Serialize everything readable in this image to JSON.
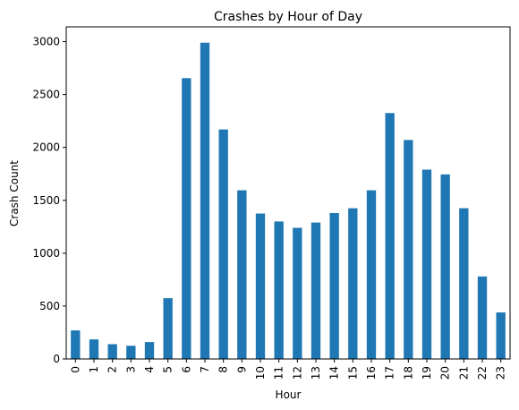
{
  "chart_data": {
    "type": "bar",
    "title": "Crashes by Hour of Day",
    "xlabel": "Hour",
    "ylabel": "Crash Count",
    "categories": [
      "0",
      "1",
      "2",
      "3",
      "4",
      "5",
      "6",
      "7",
      "8",
      "9",
      "10",
      "11",
      "12",
      "13",
      "14",
      "15",
      "16",
      "17",
      "18",
      "19",
      "20",
      "21",
      "22",
      "23"
    ],
    "values": [
      270,
      185,
      140,
      125,
      160,
      575,
      2655,
      2990,
      2170,
      1595,
      1375,
      1300,
      1240,
      1290,
      1380,
      1425,
      1595,
      2325,
      2070,
      1790,
      1745,
      1425,
      780,
      440
    ],
    "ylim": [
      0,
      3140
    ],
    "yticks": [
      0,
      500,
      1000,
      1500,
      2000,
      2500,
      3000
    ],
    "ytick_labels": [
      "0",
      "500",
      "1000",
      "1500",
      "2000",
      "2500",
      "3000"
    ],
    "grid": false,
    "bar_color": "#1f77b4"
  }
}
